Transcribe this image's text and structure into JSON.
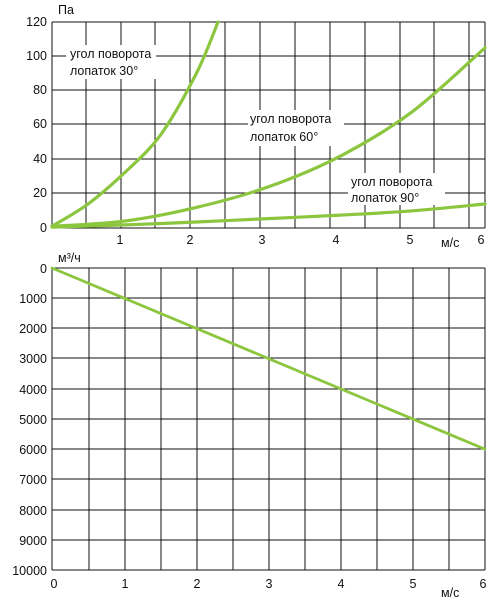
{
  "colors": {
    "curve": "#8cc63f",
    "grid": "#111111",
    "background": "#ffffff"
  },
  "chart_data": [
    {
      "type": "line",
      "ylabel": "Па",
      "xlabel": "м/с",
      "xlim": [
        0,
        6
      ],
      "ylim": [
        0,
        120
      ],
      "grid": true,
      "x_ticks": [
        "1",
        "2",
        "3",
        "4",
        "5",
        "6"
      ],
      "y_ticks": [
        "0",
        "20",
        "40",
        "60",
        "80",
        "100",
        "120"
      ],
      "series": [
        {
          "name": "угол поворота лопаток 30°",
          "x": [
            0,
            0.5,
            1,
            1.5,
            2,
            2.3
          ],
          "y": [
            1,
            14,
            32,
            54,
            90,
            120
          ]
        },
        {
          "name": "угол поворота лопаток 60°",
          "x": [
            0,
            1,
            2,
            3,
            4,
            5,
            6
          ],
          "y": [
            1,
            4,
            12,
            24,
            42,
            68,
            105
          ]
        },
        {
          "name": "угол поворота лопаток 90°",
          "x": [
            0,
            1,
            2,
            3,
            4,
            5,
            6
          ],
          "y": [
            0.5,
            1.8,
            3.5,
            5.5,
            7.5,
            10,
            14
          ]
        }
      ],
      "annotations": [
        {
          "lines": [
            "угол поворота",
            "лопаток 30°"
          ],
          "series": 0
        },
        {
          "lines": [
            "угол поворота",
            "лопаток 60°"
          ],
          "series": 1
        },
        {
          "lines": [
            "угол поворота",
            "лопаток 90°"
          ],
          "series": 2
        }
      ]
    },
    {
      "type": "line",
      "ylabel": "м³/ч",
      "xlabel": "м/с",
      "xlim": [
        0,
        6
      ],
      "ylim": [
        0,
        10000
      ],
      "y_inverted": true,
      "grid": true,
      "x_ticks": [
        "0",
        "1",
        "2",
        "3",
        "4",
        "5",
        "6"
      ],
      "y_ticks": [
        "0",
        "1000",
        "2000",
        "3000",
        "4000",
        "5000",
        "6000",
        "7000",
        "8000",
        "9000",
        "10000"
      ],
      "series": [
        {
          "name": "",
          "x": [
            0,
            6
          ],
          "y": [
            0,
            6000
          ]
        }
      ]
    }
  ]
}
